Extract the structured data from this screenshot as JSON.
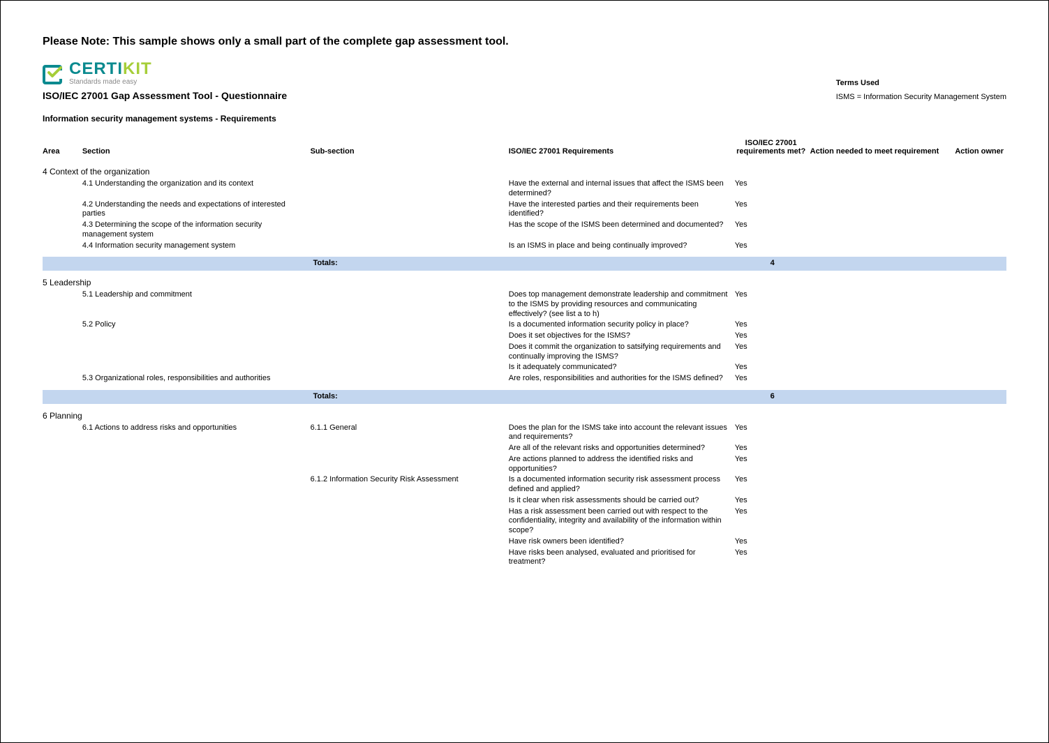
{
  "note": "Please Note: This sample shows only a small part of the complete gap assessment tool.",
  "logo": {
    "brand_part1": "CERTI",
    "brand_part2": "KIT",
    "tagline": "Standards made easy"
  },
  "tool_title": "ISO/IEC 27001 Gap Assessment Tool - Questionnaire",
  "subtitle": "Information security management systems - Requirements",
  "terms": {
    "title": "Terms Used",
    "line": "ISMS = Information Security Management System"
  },
  "headers": {
    "area": "Area",
    "section": "Section",
    "subsection": "Sub-section",
    "requirements": "ISO/IEC 27001 Requirements",
    "met": "ISO/IEC 27001 requirements met?",
    "action_needed": "Action needed to meet requirement",
    "action_owner": "Action owner"
  },
  "totals_label": "Totals:",
  "colors": {
    "totals_bg": "#c3d6ef"
  },
  "areas": [
    {
      "title": "4 Context of the organization",
      "rows": [
        {
          "section": "4.1 Understanding the organization and its context",
          "subsection": "",
          "req": "Have the external and internal issues that affect the ISMS been determined?",
          "met": "Yes"
        },
        {
          "section": "4.2 Understanding the needs and expectations of interested parties",
          "subsection": "",
          "req": "Have the interested parties and their requirements been identified?",
          "met": "Yes"
        },
        {
          "section": "4.3 Determining the scope of the information security management system",
          "subsection": "",
          "req": "Has the scope of the ISMS been determined and documented?",
          "met": "Yes"
        },
        {
          "section": "4.4 Information security management system",
          "subsection": "",
          "req": "Is an ISMS in place and being continually improved?",
          "met": "Yes"
        }
      ],
      "total": "4"
    },
    {
      "title": "5 Leadership",
      "rows": [
        {
          "section": "5.1 Leadership and commitment",
          "subsection": "",
          "req": "Does top management demonstrate  leadership and commitment to the ISMS by providing resources and communicating effectively? (see list a to h)",
          "met": "Yes"
        },
        {
          "section": "5.2 Policy",
          "subsection": "",
          "req": "Is a documented information security policy in place?",
          "met": "Yes"
        },
        {
          "section": "",
          "subsection": "",
          "req": "Does it set objectives for the ISMS?",
          "met": "Yes"
        },
        {
          "section": "",
          "subsection": "",
          "req": "Does it commit the organization to satsifying requirements and continually improving the ISMS?",
          "met": "Yes"
        },
        {
          "section": "",
          "subsection": "",
          "req": "Is it adequately communicated?",
          "met": "Yes"
        },
        {
          "section": "5.3 Organizational roles, responsibilities and authorities",
          "subsection": "",
          "req": "Are roles, responsibilities and authorities for the ISMS defined?",
          "met": "Yes"
        }
      ],
      "total": "6"
    },
    {
      "title": "6 Planning",
      "rows": [
        {
          "section": "6.1 Actions to address risks and opportunities",
          "subsection": "6.1.1 General",
          "req": "Does the plan for the ISMS take into account the relevant issues and requirements?",
          "met": "Yes"
        },
        {
          "section": "",
          "subsection": "",
          "req": "Are all of the relevant risks and opportunities determined?",
          "met": "Yes"
        },
        {
          "section": "",
          "subsection": "",
          "req": "Are actions planned to address the identified risks and opportunities?",
          "met": "Yes"
        },
        {
          "section": "",
          "subsection": "6.1.2 Information Security Risk Assessment",
          "req": "Is a documented information security risk assessment process defined and applied?",
          "met": "Yes"
        },
        {
          "section": "",
          "subsection": "",
          "req": "Is it clear when risk assessments should be carried out?",
          "met": "Yes"
        },
        {
          "section": "",
          "subsection": "",
          "req": "Has a risk assessment been carried out with respect to the confidentiality, integrity and availability of the information within scope?",
          "met": "Yes"
        },
        {
          "section": "",
          "subsection": "",
          "req": "Have risk owners been identified?",
          "met": "Yes"
        },
        {
          "section": "",
          "subsection": "",
          "req": "Have risks been analysed, evaluated and prioritised for treatment?",
          "met": "Yes"
        }
      ],
      "total": null
    }
  ]
}
